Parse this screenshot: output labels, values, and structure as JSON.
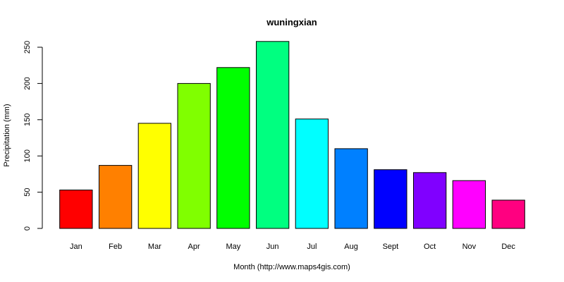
{
  "chart_data": {
    "type": "bar",
    "title": "wuningxian",
    "xlabel": "Month (http://www.maps4gis.com)",
    "ylabel": "Precipitation (mm)",
    "categories": [
      "Jan",
      "Feb",
      "Mar",
      "Apr",
      "May",
      "Jun",
      "Jul",
      "Aug",
      "Sept",
      "Oct",
      "Nov",
      "Dec"
    ],
    "values": [
      53,
      87,
      145,
      200,
      222,
      258,
      151,
      110,
      81,
      77,
      66,
      39
    ],
    "colors": [
      "#FF0000",
      "#FF8000",
      "#FFFF00",
      "#80FF00",
      "#00FF00",
      "#00FF80",
      "#00FFFF",
      "#0080FF",
      "#0000FF",
      "#8000FF",
      "#FF00FF",
      "#FF0080"
    ],
    "ylim": [
      0,
      250
    ],
    "yticks": [
      0,
      50,
      100,
      150,
      200,
      250
    ],
    "grid": false,
    "legend": "none"
  }
}
